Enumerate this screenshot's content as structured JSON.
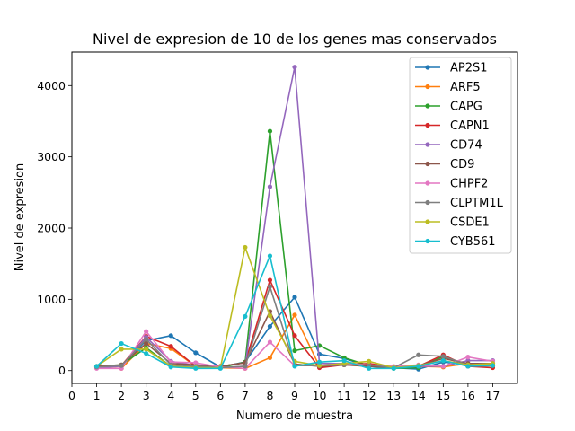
{
  "chart_data": {
    "type": "line",
    "title": "Nivel de expresion de 10 de los genes mas conservados",
    "xlabel": "Numero de muestra",
    "ylabel": "Nivel de expresion",
    "xlim": [
      0,
      18
    ],
    "ylim": [
      -180,
      4470
    ],
    "x_ticks": [
      0,
      1,
      2,
      3,
      4,
      5,
      6,
      7,
      8,
      9,
      10,
      11,
      12,
      13,
      14,
      15,
      16,
      17
    ],
    "y_ticks": [
      0,
      1000,
      2000,
      3000,
      4000
    ],
    "legend_position": "top-right",
    "grid": false,
    "x": [
      1,
      2,
      3,
      4,
      5,
      6,
      7,
      8,
      9,
      10,
      11,
      12,
      13,
      14,
      15,
      16,
      17
    ],
    "series": [
      {
        "name": "AP2S1",
        "color": "#1f77b4",
        "values": [
          50,
          70,
          420,
          490,
          250,
          50,
          120,
          620,
          1030,
          230,
          170,
          60,
          40,
          20,
          120,
          80,
          80
        ]
      },
      {
        "name": "ARF5",
        "color": "#ff7f0e",
        "values": [
          40,
          30,
          380,
          310,
          60,
          40,
          30,
          180,
          780,
          60,
          80,
          60,
          40,
          60,
          50,
          100,
          70
        ]
      },
      {
        "name": "CAPG",
        "color": "#2ca02c",
        "values": [
          60,
          80,
          320,
          60,
          40,
          40,
          120,
          3360,
          280,
          350,
          180,
          70,
          30,
          40,
          200,
          60,
          70
        ]
      },
      {
        "name": "CAPN1",
        "color": "#d62728",
        "values": [
          50,
          70,
          480,
          340,
          60,
          60,
          110,
          1270,
          490,
          40,
          80,
          100,
          40,
          60,
          220,
          60,
          40
        ]
      },
      {
        "name": "CD74",
        "color": "#9467bd",
        "values": [
          40,
          60,
          470,
          130,
          70,
          40,
          60,
          2580,
          4260,
          100,
          100,
          60,
          40,
          60,
          60,
          140,
          140
        ]
      },
      {
        "name": "CD9",
        "color": "#8c564b",
        "values": [
          60,
          80,
          380,
          100,
          80,
          60,
          110,
          830,
          90,
          60,
          80,
          60,
          40,
          70,
          170,
          100,
          100
        ]
      },
      {
        "name": "CHPF2",
        "color": "#e377c2",
        "values": [
          30,
          30,
          550,
          120,
          110,
          50,
          30,
          400,
          70,
          70,
          100,
          80,
          60,
          80,
          60,
          190,
          130
        ]
      },
      {
        "name": "CLPTM1L",
        "color": "#7f7f7f",
        "values": [
          50,
          70,
          440,
          80,
          60,
          40,
          60,
          1180,
          70,
          70,
          80,
          80,
          40,
          220,
          200,
          80,
          100
        ]
      },
      {
        "name": "CSDE1",
        "color": "#bcbd22",
        "values": [
          60,
          300,
          300,
          60,
          40,
          40,
          1730,
          770,
          130,
          70,
          100,
          130,
          40,
          70,
          140,
          80,
          100
        ]
      },
      {
        "name": "CYB561",
        "color": "#17becf",
        "values": [
          60,
          380,
          240,
          50,
          30,
          30,
          760,
          1610,
          60,
          120,
          140,
          30,
          30,
          60,
          140,
          60,
          70
        ]
      }
    ]
  }
}
